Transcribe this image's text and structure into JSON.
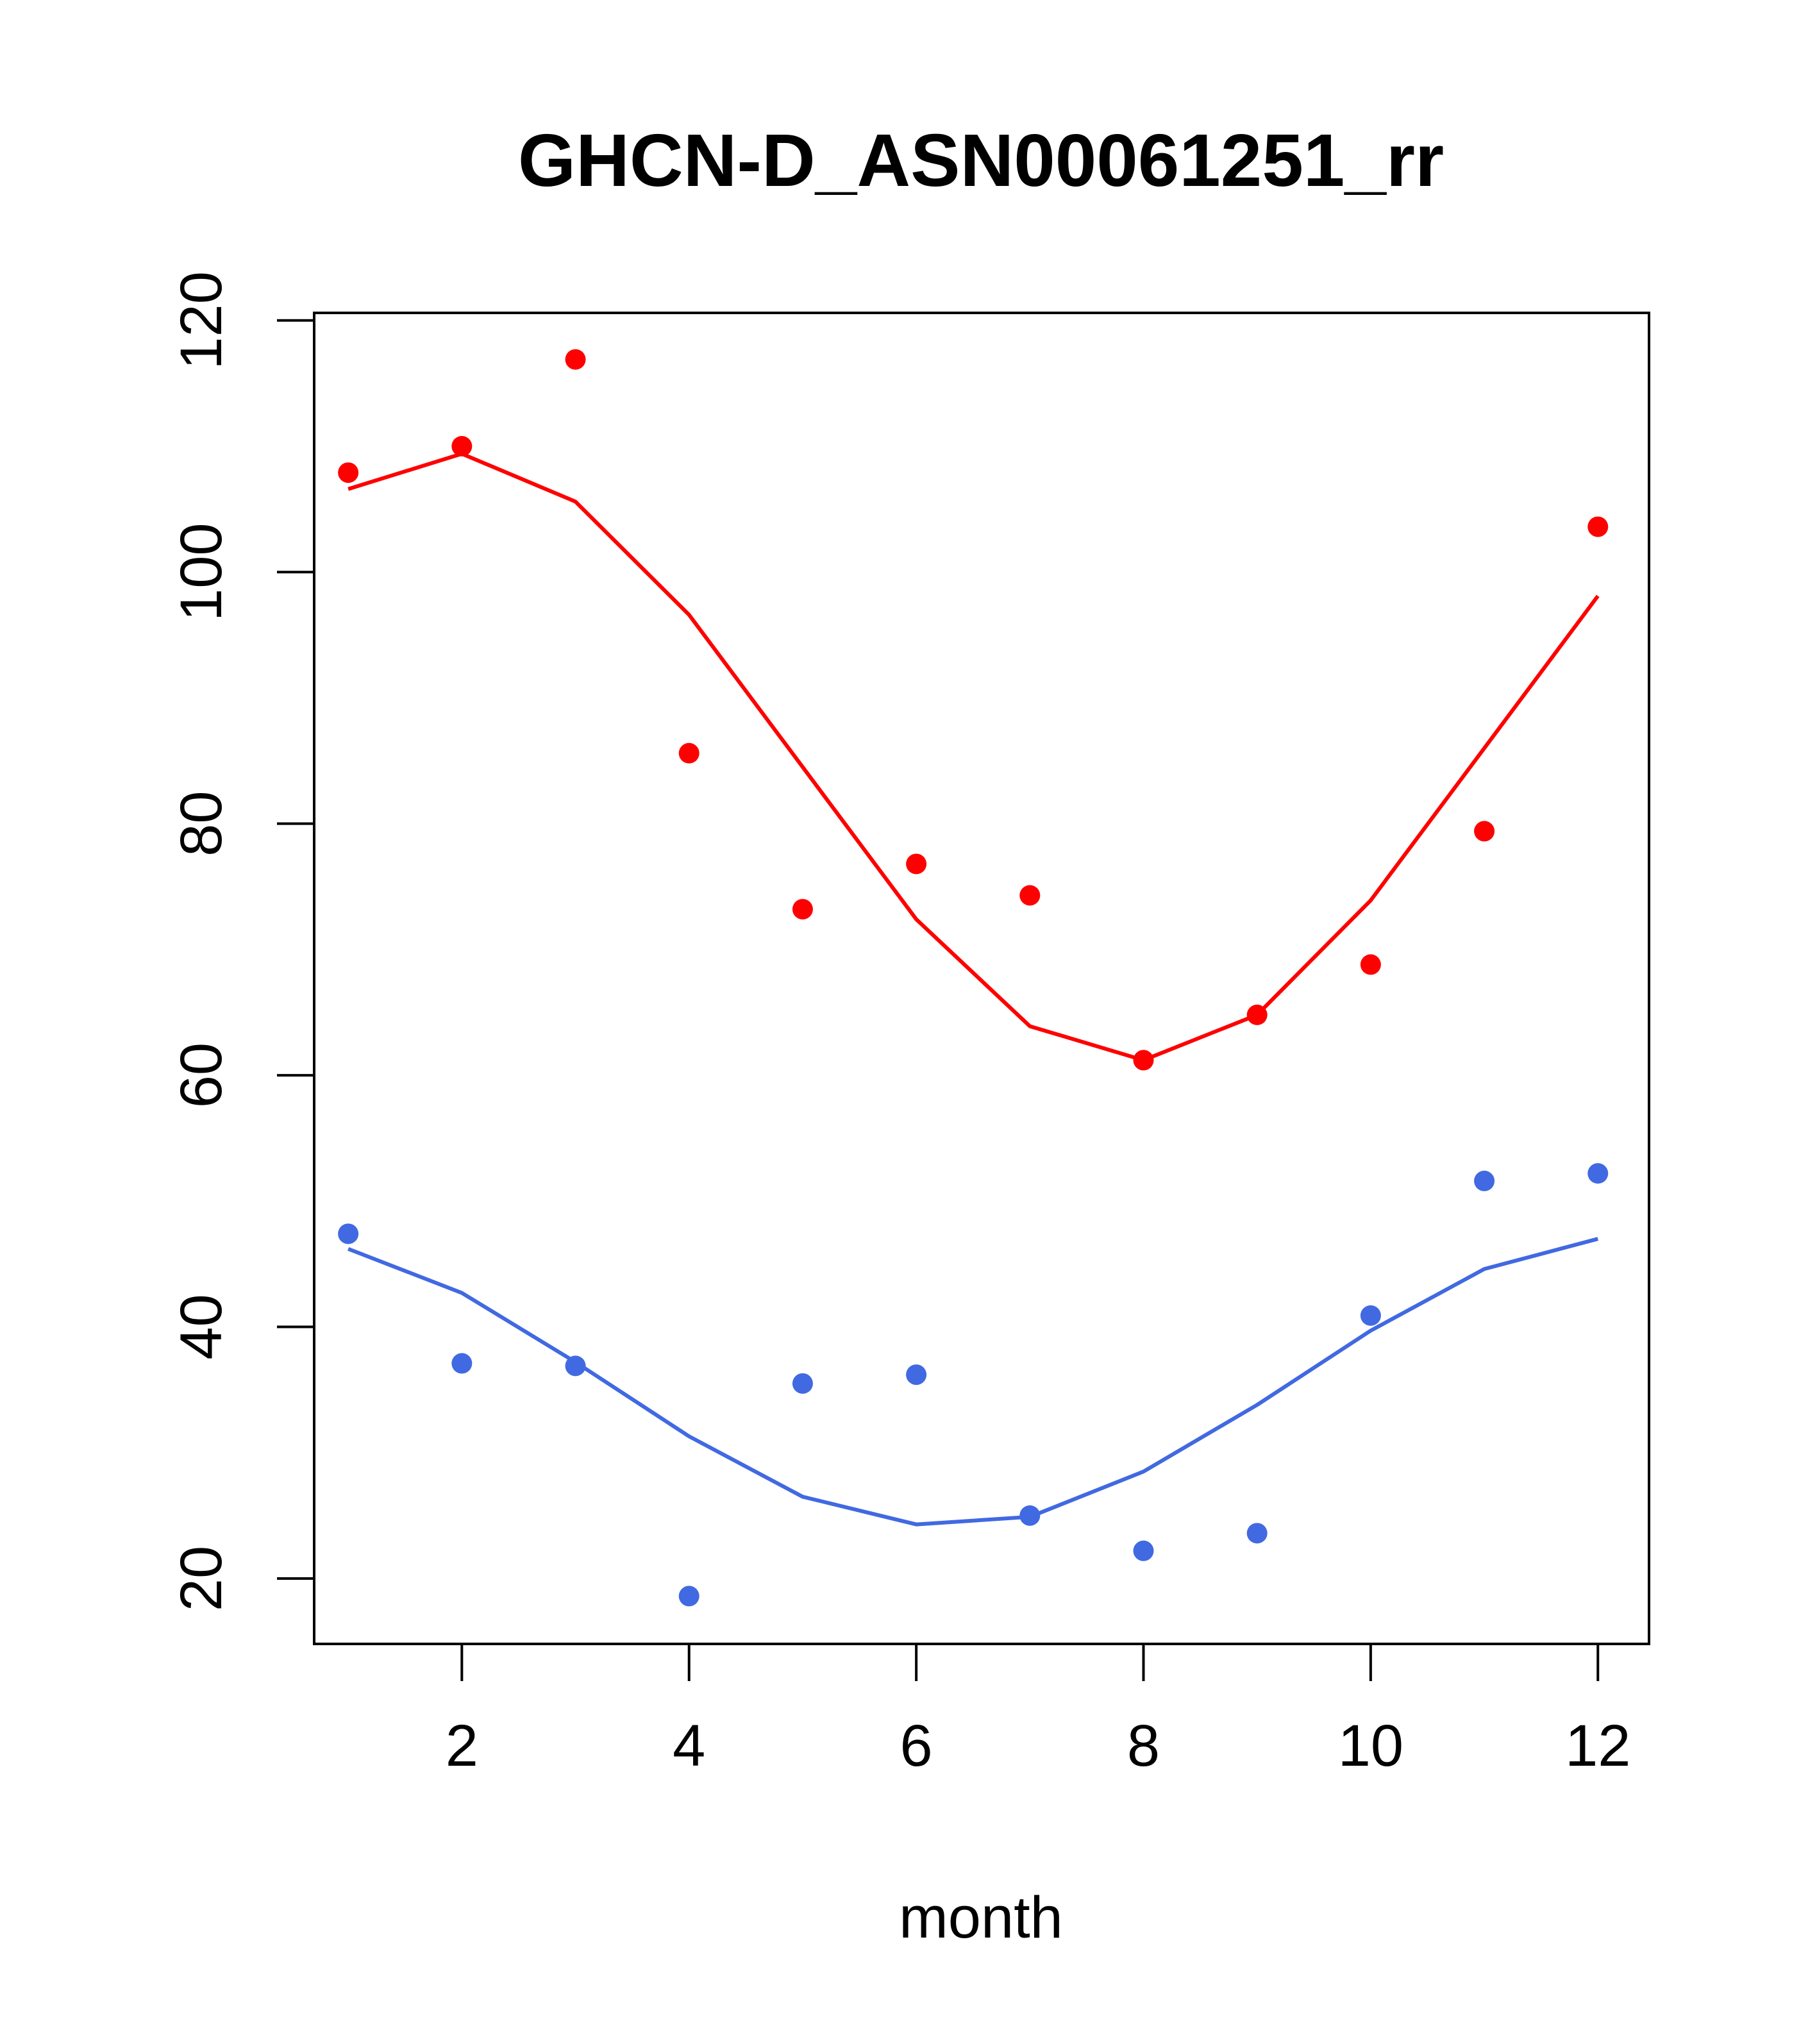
{
  "chart_data": {
    "type": "scatter",
    "title": "GHCN-D_ASN00061251_rr",
    "xlabel": "month",
    "ylabel": "",
    "xlim": [
      0.7,
      12.45
    ],
    "ylim": [
      14.8,
      120.6
    ],
    "xticks": [
      2,
      4,
      6,
      8,
      10,
      12
    ],
    "yticks": [
      20,
      40,
      60,
      80,
      100,
      120
    ],
    "grid": false,
    "legend": "none",
    "series": [
      {
        "color": "#ff0000",
        "x": [
          1,
          2,
          3,
          4,
          5,
          6,
          7,
          8,
          9,
          10,
          11,
          12
        ],
        "points": [
          107.9,
          110.0,
          116.9,
          85.6,
          73.2,
          76.8,
          74.3,
          61.2,
          64.8,
          68.8,
          79.4,
          103.6
        ],
        "line": [
          106.6,
          109.4,
          105.6,
          96.6,
          84.5,
          72.4,
          63.9,
          61.2,
          64.8,
          73.9,
          86.0,
          98.1
        ]
      },
      {
        "color": "#4169e1",
        "x": [
          1,
          2,
          3,
          4,
          5,
          6,
          7,
          8,
          9,
          10,
          11,
          12
        ],
        "points": [
          47.4,
          37.1,
          36.9,
          18.6,
          35.5,
          36.2,
          25.0,
          22.2,
          23.6,
          40.9,
          51.6,
          52.2
        ],
        "line": [
          46.2,
          42.7,
          37.2,
          31.3,
          26.5,
          24.3,
          24.9,
          28.5,
          33.8,
          39.7,
          44.6,
          47.0
        ]
      }
    ]
  }
}
